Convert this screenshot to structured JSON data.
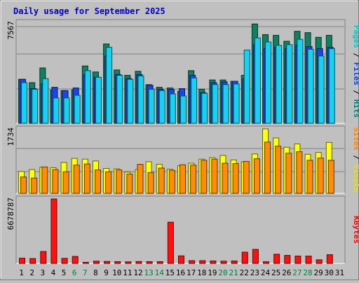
{
  "chart_data": {
    "type": "bar",
    "title": "Daily usage for September 2025",
    "categories": [
      "1",
      "2",
      "3",
      "4",
      "5",
      "6",
      "7",
      "8",
      "9",
      "10",
      "11",
      "12",
      "13",
      "14",
      "15",
      "16",
      "17",
      "18",
      "19",
      "20",
      "21",
      "22",
      "23",
      "24",
      "25",
      "26",
      "27",
      "28",
      "29",
      "30",
      "31"
    ],
    "weekend_days": [
      "6",
      "7",
      "13",
      "14",
      "20",
      "21",
      "27",
      "28"
    ],
    "panels": [
      {
        "name": "hits-files-pages",
        "ymax_label": "7567",
        "ymax": 7567,
        "right_label_parts": [
          "Pages",
          " / ",
          "Files",
          " / ",
          "Hits"
        ],
        "right_label_colors": [
          "#00c8c8",
          "#000000",
          "#0040ff",
          "#000000",
          "#008080"
        ],
        "series": [
          {
            "name": "Hits",
            "color": "#108060",
            "values": [
              3300,
              3050,
              4150,
              2500,
              2450,
              2500,
              4300,
              3850,
              5950,
              4000,
              3600,
              3900,
              2900,
              2700,
              2650,
              2400,
              3950,
              2550,
              3250,
              3250,
              3150,
              3600,
              7450,
              6650,
              6600,
              6150,
              6900,
              6800,
              6450,
              6600,
              null
            ]
          },
          {
            "name": "Files",
            "color": "#1c44e8",
            "values": [
              3300,
              2600,
              2950,
              2700,
              2450,
              2650,
              3650,
              3450,
              5050,
              3650,
              3350,
              3650,
              2850,
              2550,
              2550,
              2600,
              3600,
              2300,
              3050,
              3100,
              3150,
              3350,
              5900,
              5600,
              5700,
              5600,
              5850,
              5750,
              5600,
              5700,
              null
            ]
          },
          {
            "name": "Pages",
            "color": "#18d0f0",
            "values": [
              3050,
              2550,
              3350,
              1900,
              1900,
              2100,
              3950,
              3450,
              5700,
              3600,
              3300,
              3550,
              2550,
              2450,
              2200,
              2050,
              3400,
              2250,
              2900,
              2900,
              2950,
              5500,
              6400,
              6100,
              5850,
              5900,
              6300,
              5550,
              5050,
              5600,
              null
            ]
          }
        ]
      },
      {
        "name": "visits-sites",
        "ymax_label": "1734",
        "ymax": 1734,
        "right_label_parts": [
          "Sites",
          " / ",
          "Visits"
        ],
        "right_label_colors": [
          "#ff8000",
          "#000000",
          "#e8e000"
        ],
        "series": [
          {
            "name": "Visits",
            "color": "#ffff10",
            "values": [
              590,
              640,
              700,
              690,
              830,
              940,
              920,
              870,
              670,
              660,
              570,
              640,
              850,
              780,
              650,
              740,
              810,
              920,
              960,
              1020,
              900,
              850,
              1060,
              1734,
              1490,
              1240,
              1330,
              1050,
              1100,
              1370,
              null
            ]
          },
          {
            "name": "Sites",
            "color": "#ff8c08",
            "values": [
              440,
              410,
              710,
              640,
              580,
              760,
              790,
              630,
              580,
              630,
              520,
              780,
              560,
              680,
              620,
              770,
              760,
              890,
              920,
              810,
              800,
              860,
              930,
              1380,
              1270,
              1080,
              1120,
              890,
              950,
              890,
              null
            ]
          }
        ]
      },
      {
        "name": "kbytes",
        "ymax_label": "6678787",
        "ymax": 6678787,
        "right_label_parts": [
          "KBytes"
        ],
        "right_label_colors": [
          "#ff0000"
        ],
        "series": [
          {
            "name": "KBytes",
            "color": "#ff1010",
            "values": [
              540000,
              500000,
              1230000,
              6678787,
              520000,
              720000,
              110000,
              230000,
              200000,
              180000,
              160000,
              190000,
              180000,
              180000,
              4270000,
              780000,
              280000,
              280000,
              250000,
              230000,
              250000,
              1160000,
              1450000,
              170000,
              950000,
              830000,
              760000,
              760000,
              370000,
              900000,
              null
            ]
          }
        ]
      }
    ]
  }
}
